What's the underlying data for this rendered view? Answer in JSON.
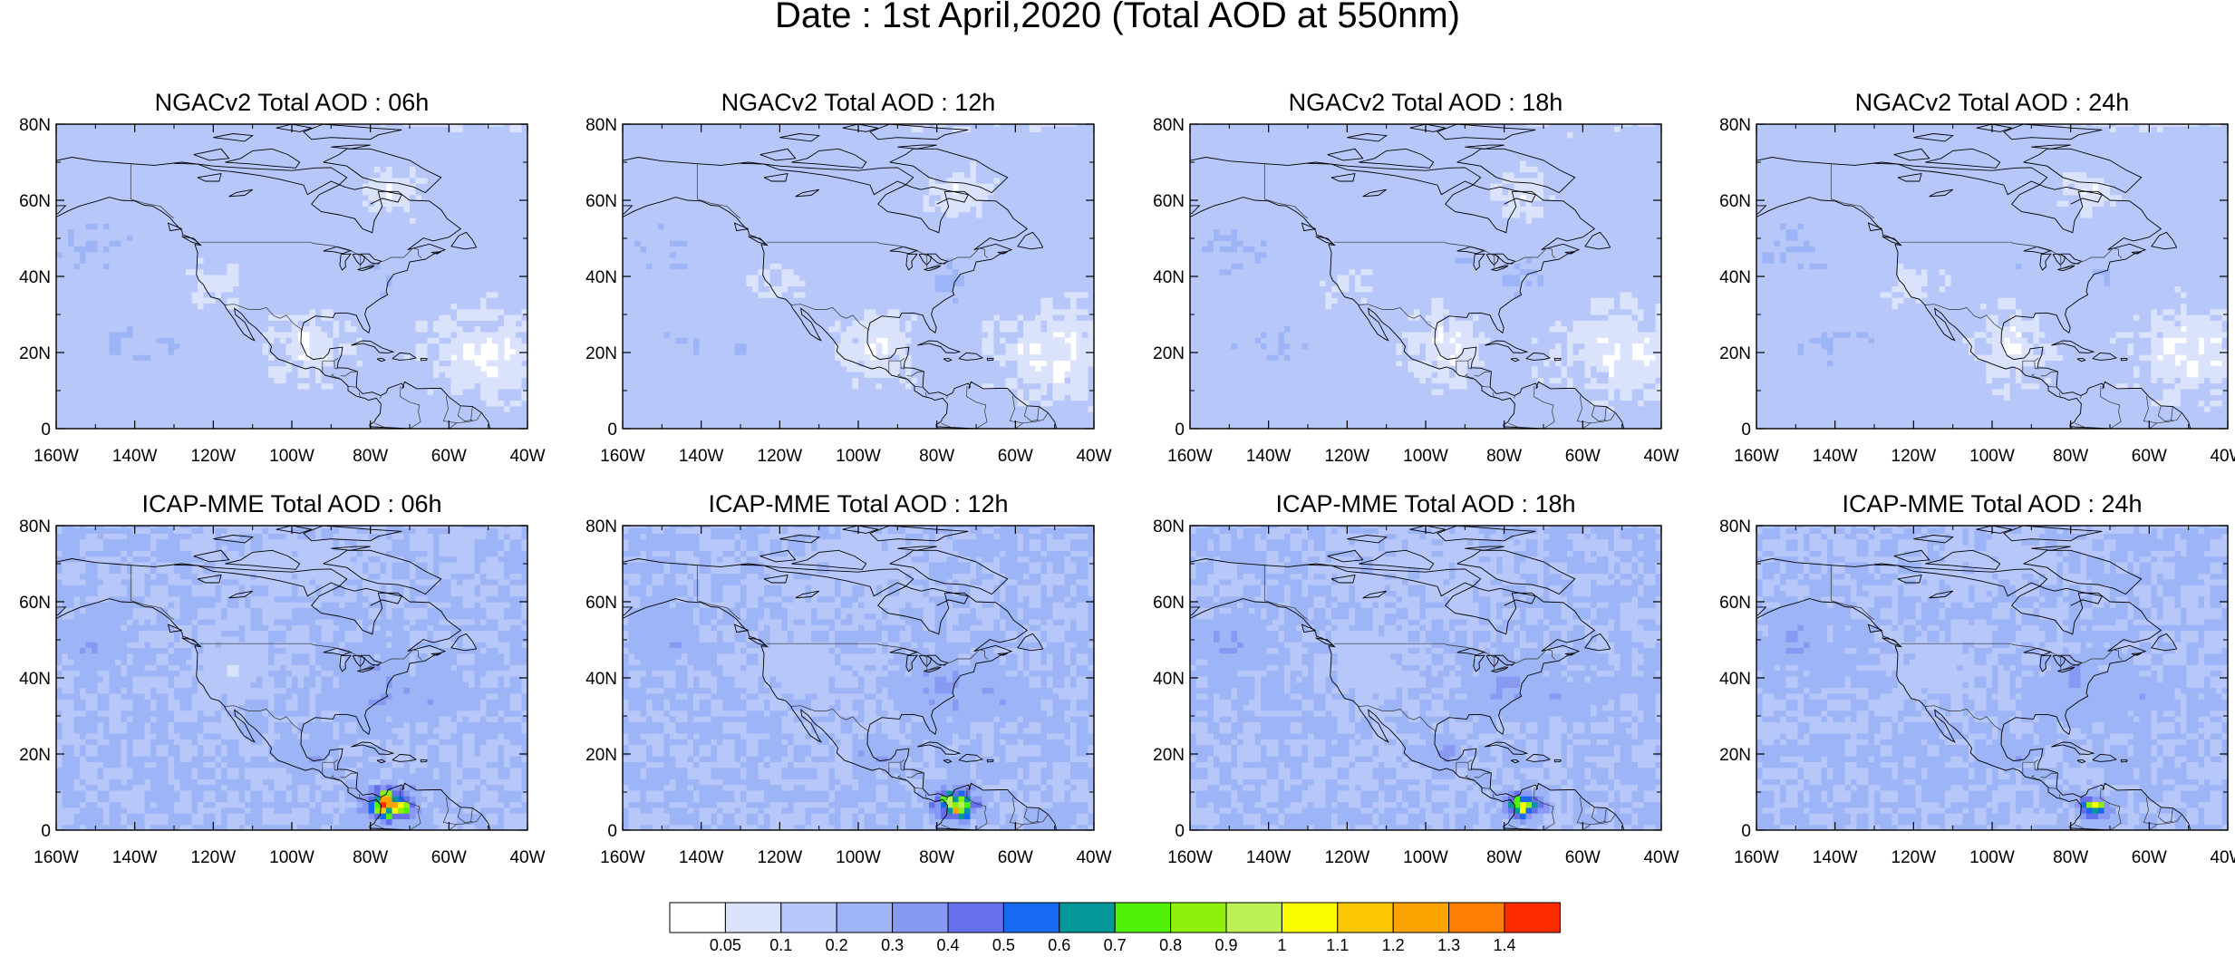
{
  "figure": {
    "title": "Date : 1st April,2020 (Total AOD at 550nm)"
  },
  "map": {
    "lat_labels": [
      "0",
      "20N",
      "40N",
      "60N",
      "80N"
    ],
    "lon_labels": [
      "160W",
      "140W",
      "120W",
      "100W",
      "80W",
      "60W",
      "40W"
    ],
    "lat_range": [
      0,
      80
    ],
    "lon_range": [
      -160,
      -40
    ]
  },
  "panels": [
    {
      "title": "NGACv2 Total AOD : 06h",
      "model": "NGACv2",
      "hour": "06h"
    },
    {
      "title": "NGACv2 Total AOD : 12h",
      "model": "NGACv2",
      "hour": "12h"
    },
    {
      "title": "NGACv2 Total AOD : 18h",
      "model": "NGACv2",
      "hour": "18h"
    },
    {
      "title": "NGACv2 Total AOD : 24h",
      "model": "NGACv2",
      "hour": "24h"
    },
    {
      "title": "ICAP-MME Total AOD : 06h",
      "model": "ICAP-MME",
      "hour": "06h"
    },
    {
      "title": "ICAP-MME Total AOD : 12h",
      "model": "ICAP-MME",
      "hour": "12h"
    },
    {
      "title": "ICAP-MME Total AOD : 18h",
      "model": "ICAP-MME",
      "hour": "18h"
    },
    {
      "title": "ICAP-MME Total AOD : 24h",
      "model": "ICAP-MME",
      "hour": "24h"
    }
  ],
  "colorbar": {
    "labels": [
      "0.05",
      "0.1",
      "0.2",
      "0.3",
      "0.4",
      "0.5",
      "0.6",
      "0.7",
      "0.8",
      "0.9",
      "1",
      "1.1",
      "1.2",
      "1.3",
      "1.4"
    ],
    "colors": [
      "#ffffff",
      "#dbe3fc",
      "#b7c7f9",
      "#9db4f6",
      "#8899f4",
      "#6670ef",
      "#1769f2",
      "#03979a",
      "#52f10a",
      "#8ff00c",
      "#bbf155",
      "#fbfb01",
      "#fbc703",
      "#fca302",
      "#fd7e01",
      "#fe2b01"
    ]
  }
}
